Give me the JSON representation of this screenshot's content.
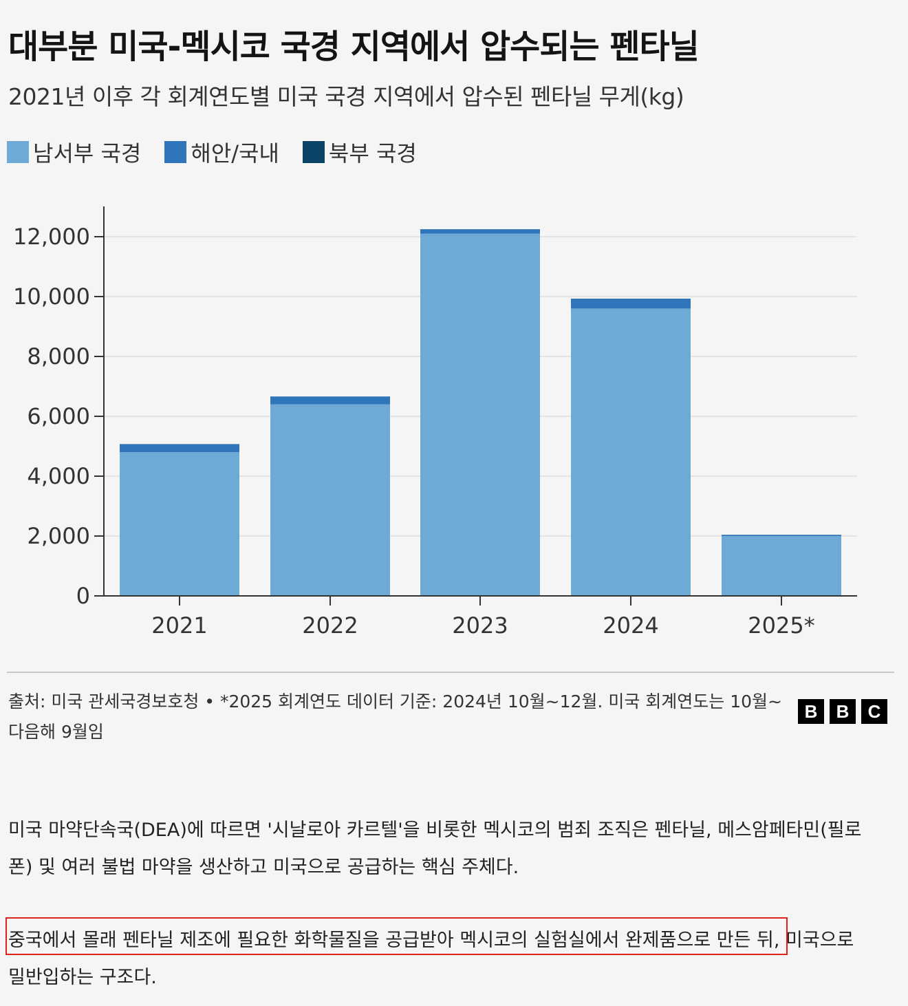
{
  "header": {
    "title": "대부분 미국-멕시코 국경 지역에서 압수되는 펜타닐",
    "subtitle": "2021년 이후 각 회계연도별 미국 국경 지역에서 압수된 펜타닐 무게(kg)"
  },
  "legend": [
    {
      "label": "남서부 국경",
      "color": "#6fa9d6"
    },
    {
      "label": "해안/국내",
      "color": "#2f75b9"
    },
    {
      "label": "북부 국경",
      "color": "#0b4366"
    }
  ],
  "chart_data": {
    "type": "bar",
    "stacked": true,
    "categories": [
      "2021",
      "2022",
      "2023",
      "2024",
      "2025*"
    ],
    "series": [
      {
        "name": "남서부 국경",
        "color": "#6fa9d6",
        "values": [
          4800,
          6400,
          12100,
          9600,
          2000
        ]
      },
      {
        "name": "해안/국내",
        "color": "#2f75b9",
        "values": [
          270,
          260,
          150,
          330,
          40
        ]
      },
      {
        "name": "북부 국경",
        "color": "#0b4366",
        "values": [
          2,
          2,
          1,
          1,
          1
        ]
      }
    ],
    "yticks": [
      "0",
      "2,000",
      "4,000",
      "6,000",
      "8,000",
      "10,000",
      "12,000"
    ],
    "ylim": [
      0,
      13000
    ],
    "grid": true
  },
  "footer": {
    "source": "출처: 미국 관세국경보호청 • *2025 회계연도 데이터 기준: 2024년 10월~12월. 미국 회계연도는 10월~다음해 9월임",
    "logo": [
      "B",
      "B",
      "C"
    ]
  },
  "article": {
    "para1": "미국 마약단속국(DEA)에 따르면 '시날로아 카르텔'을 비롯한 멕시코의 범죄 조직은 펜타닐, 메스암페타민(필로폰) 및 여러 불법 마약을 생산하고 미국으로 공급하는 핵심 주체다.",
    "para2": "중국에서 몰래 펜타닐 제조에 필요한 화학물질을 공급받아 멕시코의 실험실에서 완제품으로 만든 뒤, 미국으로 밀반입하는 구조다."
  }
}
